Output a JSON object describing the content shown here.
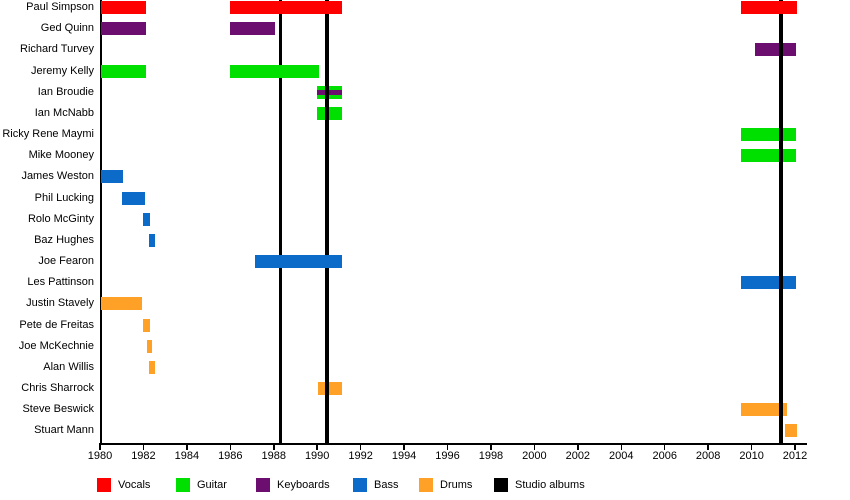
{
  "chart_data": {
    "type": "timeline-gantt",
    "description": "Band members timeline showing tenure periods by instrument",
    "x_axis": {
      "min": 1980,
      "max": 2012.3,
      "tick_years": [
        1980,
        1982,
        1984,
        1986,
        1988,
        1990,
        1992,
        1994,
        1996,
        1998,
        2000,
        2002,
        2004,
        2006,
        2008,
        2010,
        2012
      ]
    },
    "colors": {
      "vocals": "#ff0000",
      "guitar": "#00e000",
      "keyboards": "#6c0e70",
      "bass": "#0c6bc8",
      "drums": "#ffa126",
      "albums": "#000000"
    },
    "legend": [
      {
        "label": "Vocals",
        "color_key": "vocals"
      },
      {
        "label": "Guitar",
        "color_key": "guitar"
      },
      {
        "label": "Keyboards",
        "color_key": "keyboards"
      },
      {
        "label": "Bass",
        "color_key": "bass"
      },
      {
        "label": "Drums",
        "color_key": "drums"
      },
      {
        "label": "Studio albums",
        "color_key": "albums"
      }
    ],
    "album_lines": {
      "label": "Studio albums",
      "color_key": "albums",
      "years": [
        1988.3,
        1990.45,
        2011.35
      ]
    },
    "members": [
      {
        "name": "Paul Simpson",
        "instrument": "Vocals",
        "color_key": "vocals",
        "line_layer": "above",
        "segments": [
          [
            1980.05,
            1982.1
          ],
          [
            1986.0,
            1991.15
          ],
          [
            2009.5,
            2012.1
          ]
        ]
      },
      {
        "name": "Ged Quinn",
        "instrument": "Keyboards",
        "color_key": "keyboards",
        "line_layer": "above",
        "segments": [
          [
            1980.05,
            1982.1
          ],
          [
            1986.0,
            1988.05
          ]
        ]
      },
      {
        "name": "Richard Turvey",
        "instrument": "Keyboards",
        "color_key": "keyboards",
        "line_layer": "below",
        "segments": [
          [
            2010.15,
            2012.05
          ]
        ]
      },
      {
        "name": "Jeremy Kelly",
        "instrument": "Guitar",
        "color_key": "guitar",
        "line_layer": "above",
        "segments": [
          [
            1980.05,
            1982.1
          ],
          [
            1986.0,
            1990.1
          ]
        ]
      },
      {
        "name": "Ian Broudie",
        "instrument": "Guitar, Keyboards",
        "color_key": "guitar",
        "line_layer": "below",
        "overlay_color_key": "keyboards",
        "segments": [
          [
            1990.0,
            1991.15
          ]
        ]
      },
      {
        "name": "Ian McNabb",
        "instrument": "Guitar",
        "color_key": "guitar",
        "line_layer": "below",
        "segments": [
          [
            1990.0,
            1991.15
          ]
        ]
      },
      {
        "name": "Ricky Rene Maymi",
        "instrument": "Guitar",
        "color_key": "guitar",
        "line_layer": "below",
        "segments": [
          [
            2009.5,
            2012.05
          ]
        ]
      },
      {
        "name": "Mike Mooney",
        "instrument": "Guitar",
        "color_key": "guitar",
        "line_layer": "below",
        "segments": [
          [
            2009.5,
            2012.05
          ]
        ]
      },
      {
        "name": "James Weston",
        "instrument": "Bass",
        "color_key": "bass",
        "line_layer": "above",
        "segments": [
          [
            1980.05,
            1981.05
          ]
        ]
      },
      {
        "name": "Phil Lucking",
        "instrument": "Bass",
        "color_key": "bass",
        "line_layer": "above",
        "segments": [
          [
            1981.0,
            1982.05
          ]
        ]
      },
      {
        "name": "Rolo McGinty",
        "instrument": "Bass",
        "color_key": "bass",
        "line_layer": "above",
        "segments": [
          [
            1982.0,
            1982.3
          ]
        ]
      },
      {
        "name": "Baz Hughes",
        "instrument": "Bass",
        "color_key": "bass",
        "line_layer": "above",
        "segments": [
          [
            1982.25,
            1982.55
          ]
        ]
      },
      {
        "name": "Joe Fearon",
        "instrument": "Bass",
        "color_key": "bass",
        "line_layer": "above",
        "segments": [
          [
            1987.15,
            1991.15
          ]
        ]
      },
      {
        "name": "Les Pattinson",
        "instrument": "Bass",
        "color_key": "bass",
        "line_layer": "below",
        "segments": [
          [
            2009.5,
            2012.05
          ]
        ]
      },
      {
        "name": "Justin Stavely",
        "instrument": "Drums",
        "color_key": "drums",
        "line_layer": "above",
        "segments": [
          [
            1980.05,
            1981.95
          ]
        ]
      },
      {
        "name": "Pete de Freitas",
        "instrument": "Drums",
        "color_key": "drums",
        "line_layer": "above",
        "segments": [
          [
            1982.0,
            1982.3
          ]
        ]
      },
      {
        "name": "Joe McKechnie",
        "instrument": "Drums",
        "color_key": "drums",
        "line_layer": "above",
        "segments": [
          [
            1982.15,
            1982.4
          ]
        ]
      },
      {
        "name": "Alan Willis",
        "instrument": "Drums",
        "color_key": "drums",
        "line_layer": "above",
        "segments": [
          [
            1982.25,
            1982.55
          ]
        ]
      },
      {
        "name": "Chris Sharrock",
        "instrument": "Drums",
        "color_key": "drums",
        "line_layer": "below",
        "segments": [
          [
            1990.05,
            1991.15
          ]
        ]
      },
      {
        "name": "Steve Beswick",
        "instrument": "Drums",
        "color_key": "drums",
        "line_layer": "below",
        "segments": [
          [
            2009.5,
            2011.65
          ]
        ]
      },
      {
        "name": "Stuart Mann",
        "instrument": "Drums",
        "color_key": "drums",
        "line_layer": "above",
        "segments": [
          [
            2011.55,
            2012.07
          ]
        ]
      }
    ]
  }
}
